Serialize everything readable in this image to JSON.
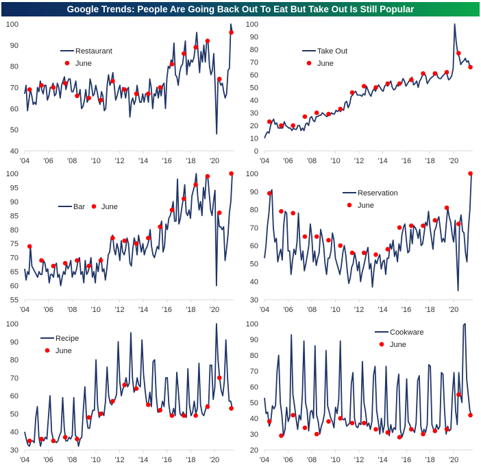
{
  "title": "Google Trends: People Are Going Back Out To Eat But Take Out Is Still Popular",
  "colors": {
    "line": "#1f3566",
    "dot": "#ff0000",
    "axis": "#d9d9d9"
  },
  "chart_data": [
    {
      "type": "line",
      "name": "Restaurant",
      "legend": [
        "Restaurant",
        "June"
      ],
      "ylim": [
        40,
        100
      ],
      "yticks": [
        40,
        50,
        60,
        70,
        80,
        90,
        100
      ],
      "xticks": [
        "'04",
        "'06",
        "'08",
        "'10",
        "'12",
        "'14",
        "'16",
        "'18",
        "'20"
      ],
      "xrange": [
        2004,
        2021.5
      ],
      "june_years": [
        2004,
        2005,
        2006,
        2007,
        2008,
        2009,
        2010,
        2011,
        2012,
        2013,
        2014,
        2015,
        2016,
        2017,
        2018,
        2019,
        2020,
        2021
      ],
      "june_values": [
        69,
        71,
        70,
        72,
        66,
        65,
        64,
        73,
        69,
        67,
        67,
        70,
        81,
        86,
        89,
        92,
        74,
        96
      ],
      "monthly": [
        67,
        71,
        59,
        64,
        69,
        66,
        62,
        63,
        62,
        70,
        68,
        73,
        69,
        67,
        71,
        71,
        64,
        66,
        70,
        70,
        72,
        66,
        67,
        72,
        70,
        65,
        71,
        73,
        75,
        69,
        72,
        74,
        74,
        68,
        68,
        70,
        73,
        66,
        66,
        69,
        60,
        61,
        64,
        69,
        63,
        65,
        74,
        71,
        66,
        67,
        71,
        68,
        64,
        62,
        68,
        66,
        59,
        60,
        71,
        76,
        71,
        73,
        77,
        71,
        64,
        66,
        69,
        71,
        65,
        70,
        69,
        65,
        69,
        70,
        56,
        63,
        65,
        62,
        64,
        71,
        67,
        63,
        63,
        67,
        63,
        67,
        67,
        63,
        74,
        70,
        60,
        67,
        66,
        70,
        65,
        70,
        66,
        71,
        72,
        60,
        74,
        80,
        79,
        83,
        81,
        91,
        76,
        75,
        71,
        77,
        80,
        81,
        86,
        92,
        76,
        83,
        80,
        83,
        82,
        84,
        89,
        96,
        86,
        77,
        87,
        82,
        90,
        82,
        92,
        91,
        80,
        76,
        78,
        86,
        70,
        48,
        74,
        73,
        71,
        72,
        68,
        65,
        67,
        78,
        79,
        100,
        96
      ]
    },
    {
      "type": "line",
      "name": "Take Out",
      "legend": [
        "Take Out",
        "June"
      ],
      "ylim": [
        0,
        100
      ],
      "yticks": [
        0,
        10,
        20,
        30,
        40,
        50,
        60,
        70,
        80,
        90,
        100
      ],
      "xticks": [
        "'04",
        "'06",
        "'08",
        "'10",
        "'12",
        "'14",
        "'16",
        "'18",
        "'20"
      ],
      "xrange": [
        2004,
        2021.5
      ],
      "june_years": [
        2004,
        2005,
        2006,
        2007,
        2008,
        2009,
        2010,
        2011,
        2012,
        2013,
        2014,
        2015,
        2016,
        2017,
        2018,
        2019,
        2020,
        2021
      ],
      "june_values": [
        23,
        20,
        20,
        27,
        30,
        29,
        33,
        46,
        51,
        50,
        53,
        53,
        56,
        61,
        61,
        62,
        77,
        66
      ],
      "monthly": [
        10,
        13,
        15,
        14,
        20,
        23,
        25,
        21,
        22,
        18,
        18,
        18,
        18,
        23,
        20,
        19,
        18,
        18,
        16,
        18,
        17,
        17,
        20,
        20,
        16,
        18,
        16,
        21,
        22,
        20,
        26,
        27,
        24,
        23,
        27,
        27,
        28,
        28,
        30,
        29,
        28,
        27,
        28,
        28,
        30,
        29,
        29,
        32,
        31,
        32,
        31,
        33,
        32,
        38,
        39,
        34,
        37,
        43,
        44,
        46,
        47,
        44,
        44,
        44,
        43,
        45,
        44,
        51,
        48,
        45,
        43,
        47,
        49,
        47,
        50,
        52,
        50,
        48,
        47,
        51,
        52,
        51,
        53,
        55,
        50,
        48,
        49,
        52,
        51,
        53,
        53,
        57,
        55,
        51,
        53,
        55,
        56,
        58,
        52,
        53,
        55,
        50,
        55,
        57,
        60,
        61,
        59,
        53,
        55,
        57,
        58,
        59,
        61,
        62,
        58,
        57,
        57,
        59,
        60,
        62,
        60,
        56,
        57,
        59,
        65,
        100,
        86,
        77,
        74,
        68,
        70,
        71,
        73,
        70,
        71,
        66,
        66
      ]
    },
    {
      "type": "line",
      "name": "Bar",
      "legend": [
        "Bar",
        "June"
      ],
      "ylim": [
        55,
        100
      ],
      "yticks": [
        55,
        60,
        65,
        70,
        75,
        80,
        85,
        90,
        95,
        100
      ],
      "xticks": [
        "'04",
        "'06",
        "'08",
        "'10",
        "'12",
        "'14",
        "'16",
        "'18",
        "'20"
      ],
      "xrange": [
        2004,
        2021.5
      ],
      "june_years": [
        2004,
        2005,
        2006,
        2007,
        2008,
        2009,
        2010,
        2011,
        2012,
        2013,
        2014,
        2015,
        2016,
        2017,
        2018,
        2019,
        2020,
        2021
      ],
      "june_values": [
        74,
        69,
        67,
        68,
        69,
        67,
        69,
        77,
        76,
        75,
        77,
        81,
        87,
        91,
        96,
        99,
        86,
        100
      ],
      "monthly": [
        66,
        62,
        65,
        64,
        74,
        67,
        66,
        65,
        64,
        63,
        65,
        64,
        64,
        69,
        68,
        65,
        66,
        61,
        64,
        64,
        63,
        67,
        68,
        63,
        64,
        60,
        63,
        65,
        64,
        68,
        66,
        67,
        69,
        63,
        65,
        64,
        66,
        69,
        70,
        64,
        65,
        61,
        69,
        64,
        65,
        67,
        70,
        63,
        65,
        61,
        68,
        65,
        69,
        70,
        65,
        66,
        62,
        66,
        71,
        72,
        77,
        78,
        73,
        71,
        75,
        73,
        69,
        76,
        72,
        71,
        73,
        77,
        75,
        68,
        67,
        73,
        77,
        75,
        71,
        78,
        75,
        72,
        75,
        71,
        73,
        74,
        76,
        80,
        74,
        71,
        70,
        72,
        74,
        73,
        81,
        83,
        72,
        74,
        82,
        80,
        84,
        85,
        87,
        90,
        83,
        83,
        98,
        82,
        84,
        88,
        91,
        96,
        86,
        85,
        87,
        84,
        92,
        94,
        96,
        100,
        92,
        87,
        90,
        85,
        95,
        91,
        99,
        99,
        93,
        87,
        85,
        90,
        94,
        60,
        86,
        81,
        81,
        80,
        81,
        69,
        73,
        78,
        86,
        90,
        100
      ]
    },
    {
      "type": "line",
      "name": "Reservation",
      "legend": [
        "Reservation",
        "June"
      ],
      "ylim": [
        30,
        100
      ],
      "yticks": [
        30,
        40,
        50,
        60,
        70,
        80,
        90,
        100
      ],
      "xticks": [
        "'04",
        "'06",
        "'08",
        "'10",
        "'12",
        "'14",
        "'16",
        "'18",
        "'20"
      ],
      "xrange": [
        2004,
        2021.5
      ],
      "june_years": [
        2004,
        2005,
        2006,
        2007,
        2008,
        2009,
        2010,
        2011,
        2012,
        2013,
        2014,
        2015,
        2016,
        2017,
        2018,
        2019,
        2020,
        2021
      ],
      "june_values": [
        89,
        79,
        78,
        65,
        65,
        63,
        60,
        56,
        56,
        55,
        58,
        70,
        71,
        71,
        74,
        81,
        72,
        100
      ],
      "monthly": [
        53,
        60,
        71,
        78,
        89,
        91,
        70,
        62,
        64,
        51,
        55,
        58,
        52,
        71,
        79,
        78,
        57,
        57,
        44,
        52,
        58,
        55,
        62,
        78,
        60,
        52,
        57,
        46,
        50,
        55,
        60,
        72,
        65,
        51,
        57,
        49,
        53,
        56,
        69,
        65,
        60,
        50,
        44,
        53,
        53,
        57,
        67,
        63,
        53,
        50,
        47,
        44,
        49,
        56,
        60,
        55,
        46,
        39,
        42,
        48,
        50,
        56,
        52,
        46,
        51,
        40,
        45,
        48,
        52,
        56,
        59,
        47,
        50,
        37,
        46,
        52,
        50,
        53,
        55,
        47,
        51,
        52,
        44,
        53,
        53,
        61,
        58,
        63,
        54,
        57,
        51,
        61,
        57,
        66,
        70,
        72,
        63,
        56,
        57,
        69,
        61,
        71,
        70,
        68,
        64,
        69,
        60,
        61,
        67,
        73,
        71,
        79,
        70,
        64,
        58,
        68,
        70,
        74,
        76,
        69,
        62,
        64,
        62,
        72,
        81,
        76,
        73,
        66,
        62,
        74,
        55,
        35,
        72,
        77,
        68,
        67,
        56,
        51,
        70,
        80,
        100
      ]
    },
    {
      "type": "line",
      "name": "Recipe",
      "legend": [
        "Recipe",
        "June"
      ],
      "ylim": [
        30,
        100
      ],
      "yticks": [
        30,
        40,
        50,
        60,
        70,
        80,
        90,
        100
      ],
      "xticks": [
        "'04",
        "'06",
        "'08",
        "'10",
        "'12",
        "'14",
        "'16",
        "'18",
        "'20"
      ],
      "xrange": [
        2004,
        2021.5
      ],
      "june_years": [
        2004,
        2005,
        2006,
        2007,
        2008,
        2009,
        2010,
        2011,
        2012,
        2013,
        2014,
        2015,
        2016,
        2017,
        2018,
        2019,
        2020,
        2021
      ],
      "june_values": [
        35,
        36,
        35,
        37,
        36,
        48,
        50,
        57,
        66,
        64,
        55,
        52,
        49,
        49,
        49,
        54,
        70,
        53
      ],
      "monthly": [
        40,
        36,
        33,
        32,
        35,
        35,
        34,
        48,
        54,
        37,
        32,
        36,
        35,
        37,
        36,
        48,
        60,
        40,
        36,
        35,
        34,
        35,
        38,
        40,
        59,
        42,
        35,
        35,
        37,
        36,
        38,
        59,
        38,
        37,
        32,
        36,
        37,
        52,
        65,
        48,
        42,
        42,
        48,
        52,
        52,
        80,
        55,
        48,
        50,
        51,
        49,
        57,
        76,
        60,
        56,
        55,
        57,
        58,
        61,
        90,
        68,
        60,
        64,
        66,
        70,
        65,
        67,
        95,
        70,
        62,
        64,
        70,
        66,
        65,
        91,
        72,
        63,
        56,
        55,
        62,
        54,
        79,
        80,
        60,
        51,
        51,
        52,
        57,
        54,
        70,
        70,
        55,
        49,
        49,
        53,
        49,
        73,
        62,
        50,
        49,
        51,
        49,
        48,
        75,
        55,
        49,
        51,
        57,
        50,
        53,
        78,
        55,
        50,
        49,
        52,
        55,
        53,
        77,
        77,
        58,
        65,
        100,
        80,
        70,
        63,
        60,
        68,
        91,
        70,
        57,
        57,
        53
      ]
    },
    {
      "type": "line",
      "name": "Cookware",
      "legend": [
        "Cookware",
        "June"
      ],
      "ylim": [
        20,
        100
      ],
      "yticks": [
        20,
        30,
        40,
        50,
        60,
        70,
        80,
        90,
        100
      ],
      "xticks": [
        "'04",
        "'06",
        "'08",
        "'10",
        "'12",
        "'14",
        "'16",
        "'18",
        "'20"
      ],
      "xrange": [
        2004,
        2021.5
      ],
      "june_years": [
        2004,
        2005,
        2006,
        2007,
        2008,
        2009,
        2010,
        2011,
        2012,
        2013,
        2014,
        2015,
        2016,
        2017,
        2018,
        2019,
        2020,
        2021
      ],
      "june_values": [
        38,
        29,
        42,
        34,
        30,
        38,
        40,
        37,
        37,
        33,
        31,
        28,
        33,
        30,
        32,
        33,
        55,
        42
      ],
      "monthly": [
        53,
        43,
        44,
        35,
        38,
        48,
        46,
        48,
        70,
        80,
        50,
        42,
        29,
        33,
        47,
        38,
        41,
        93,
        55,
        48,
        40,
        33,
        42,
        39,
        55,
        89,
        50,
        45,
        32,
        44,
        45,
        40,
        86,
        42,
        38,
        30,
        35,
        38,
        43,
        83,
        48,
        44,
        40,
        38,
        34,
        47,
        43,
        52,
        89,
        40,
        39,
        40,
        35,
        36,
        37,
        62,
        69,
        40,
        35,
        34,
        37,
        36,
        76,
        50,
        44,
        35,
        37,
        33,
        38,
        67,
        73,
        45,
        38,
        30,
        40,
        31,
        36,
        73,
        37,
        29,
        36,
        31,
        34,
        33,
        60,
        68,
        33,
        28,
        31,
        35,
        65,
        38,
        36,
        33,
        33,
        31,
        37,
        64,
        67,
        35,
        30,
        33,
        31,
        36,
        74,
        73,
        36,
        33,
        32,
        36,
        33,
        35,
        69,
        68,
        45,
        30,
        35,
        32,
        33,
        55,
        69,
        45,
        36,
        69,
        55,
        50,
        99,
        100,
        65,
        55,
        45,
        42
      ]
    }
  ]
}
